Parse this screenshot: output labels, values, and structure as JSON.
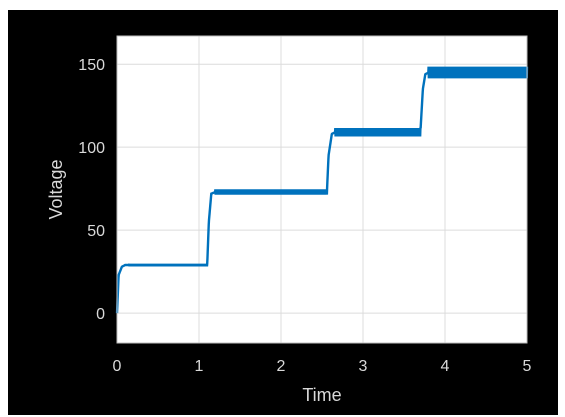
{
  "chart_data": {
    "type": "line",
    "xlabel": "Time",
    "ylabel": "Voltage",
    "xlim": [
      0,
      5
    ],
    "ylim": [
      -18,
      167
    ],
    "xticks": [
      0,
      1,
      2,
      3,
      4,
      5
    ],
    "yticks": [
      0,
      50,
      100,
      150
    ],
    "grid": true,
    "series": [
      {
        "color": "#0072bd",
        "x": [
          0,
          0.02,
          0.06,
          0.1,
          1.1,
          1.12,
          1.15,
          1.2,
          2.56,
          2.58,
          2.62,
          2.66,
          3.7,
          3.73,
          3.76,
          3.8,
          5
        ],
        "y": [
          0,
          23,
          28,
          29,
          29,
          55,
          72,
          73,
          73,
          95,
          108,
          109,
          109,
          135,
          144,
          145,
          145
        ],
        "ripple_from_x": [
          0.15,
          1.2,
          2.66,
          3.8
        ],
        "ripple_to_x": [
          1.1,
          2.56,
          3.7,
          5
        ],
        "ripple_amplitude": [
          0.8,
          1.6,
          2.5,
          3.5
        ]
      }
    ],
    "colors": {
      "background": "#000000",
      "plot_area": "#ffffff",
      "grid": "#dcdcdc",
      "text": "#d9d9d9",
      "line": "#0072bd"
    }
  }
}
